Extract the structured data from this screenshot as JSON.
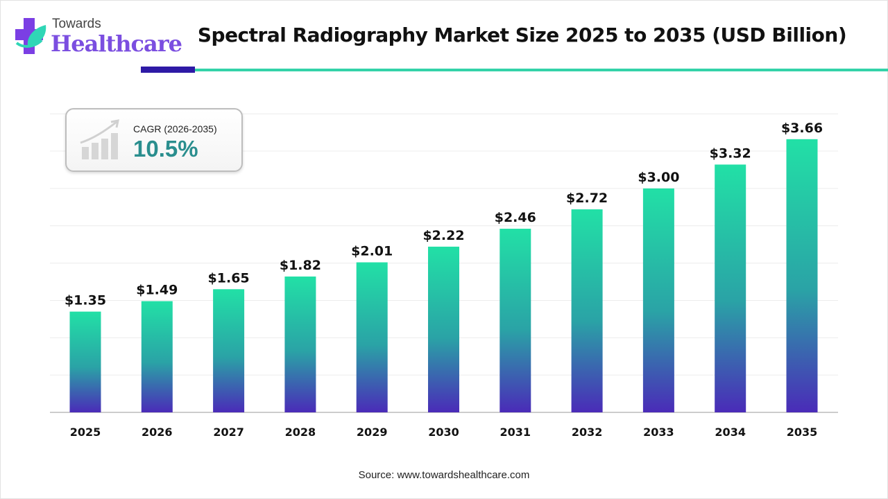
{
  "logo": {
    "line1": "Towards",
    "line2": "Healthcare"
  },
  "title": "Spectral Radiography Market Size 2025 to 2035 (USD Billion)",
  "cagr": {
    "label": "CAGR (2026-2035)",
    "value": "10.5%"
  },
  "source": "Source: www.towardshealthcare.com",
  "colors": {
    "bar_top": "#22e0a6",
    "bar_bottom": "#4a2bb8",
    "accent_dark": "#2e1aa6",
    "accent_teal": "#33d2a8",
    "cagr_value": "#2a8e8e"
  },
  "chart_data": {
    "type": "bar",
    "categories": [
      "2025",
      "2026",
      "2027",
      "2028",
      "2029",
      "2030",
      "2031",
      "2032",
      "2033",
      "2034",
      "2035"
    ],
    "values": [
      1.35,
      1.49,
      1.65,
      1.82,
      2.01,
      2.22,
      2.46,
      2.72,
      3.0,
      3.32,
      3.66
    ],
    "data_labels": [
      "$1.35",
      "$1.49",
      "$1.65",
      "$1.82",
      "$2.01",
      "$2.22",
      "$2.46",
      "$2.72",
      "$3.00",
      "$3.32",
      "$3.66"
    ],
    "ylim": [
      0,
      4
    ],
    "grid": true,
    "xlabel": "",
    "ylabel": ""
  }
}
